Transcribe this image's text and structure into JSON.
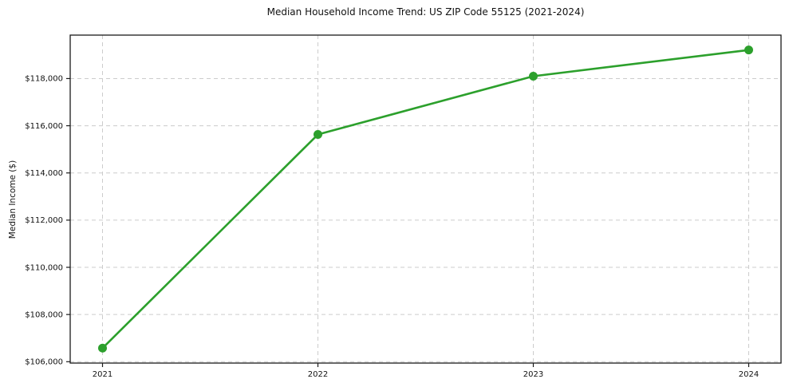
{
  "chart_data": {
    "type": "line",
    "title": "Median Household Income Trend: US ZIP Code 55125 (2021-2024)",
    "xlabel": "",
    "ylabel": "Median Income ($)",
    "x": [
      2021,
      2022,
      2023,
      2024
    ],
    "series": [
      {
        "name": "Median Household Income",
        "values": [
          106575,
          115630,
          118100,
          119210
        ]
      }
    ],
    "xtick_labels": [
      "2021",
      "2022",
      "2023",
      "2024"
    ],
    "ytick_values": [
      106000,
      108000,
      110000,
      112000,
      114000,
      116000,
      118000
    ],
    "ytick_labels": [
      "$106,000",
      "$108,000",
      "$110,000",
      "$112,000",
      "$114,000",
      "$116,000",
      "$118,000"
    ],
    "ylim": [
      105942,
      119841
    ],
    "x_margin_frac": 0.05,
    "grid": true,
    "grid_style": "dashed",
    "legend": "none",
    "line_color": "#2ca02c",
    "marker": "circle",
    "marker_radius": 5.5,
    "line_width": 2.6,
    "grid_color": "#cccccc",
    "spine_color": "#1a1a1a",
    "text_color": "#111111"
  }
}
